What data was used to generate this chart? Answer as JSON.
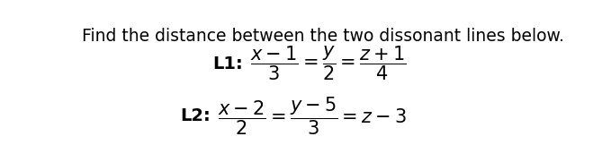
{
  "bg_color": "#ffffff",
  "title": "Find the distance between the two dissonant lines below.",
  "title_fontsize": 13.5,
  "math_fontsize": 15,
  "label_fontsize": 14,
  "L1_math": "$\\dfrac{x-1}{3} = \\dfrac{y}{2} = \\dfrac{z+1}{4}$",
  "L2_math": "$\\dfrac{x-2}{2} = \\dfrac{y-5}{3} = z - 3$",
  "L1_label": "L1:",
  "L2_label": "L2:"
}
